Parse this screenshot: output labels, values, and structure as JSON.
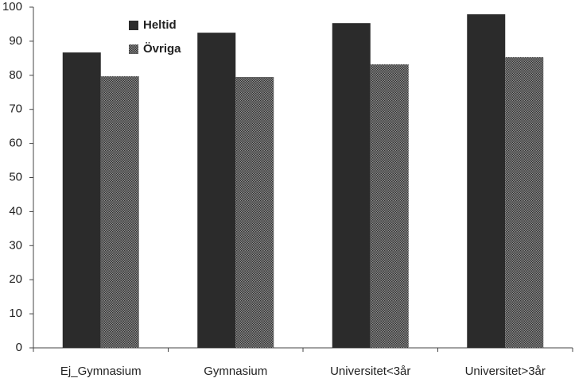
{
  "chart_data": {
    "type": "bar",
    "categories": [
      "Ej_Gymnasium",
      "Gymnasium",
      "Universitet<3år",
      "Universitet>3år"
    ],
    "series": [
      {
        "name": "Heltid",
        "color": "#2b2b2b",
        "values": [
          86.7,
          92.5,
          95.3,
          97.9
        ]
      },
      {
        "name": "Övriga",
        "color": "#8c8c8c",
        "values": [
          79.7,
          79.5,
          83.2,
          85.3
        ]
      }
    ],
    "ylim": [
      0,
      100
    ],
    "yticks": [
      0,
      10,
      20,
      30,
      40,
      50,
      60,
      70,
      80,
      90,
      100
    ],
    "grid": false
  }
}
